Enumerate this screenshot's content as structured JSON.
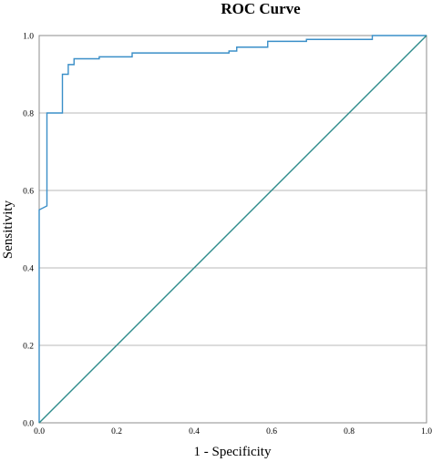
{
  "chart_data": {
    "type": "line",
    "title": "ROC Curve",
    "xlabel": "1 - Specificity",
    "ylabel": "Sensitivity",
    "xlim": [
      0.0,
      1.0
    ],
    "ylim": [
      0.0,
      1.0
    ],
    "x_ticks": [
      "0.0",
      "0.2",
      "0.4",
      "0.6",
      "0.8",
      "1.0"
    ],
    "y_ticks": [
      "0.0",
      "0.2",
      "0.4",
      "0.6",
      "0.8",
      "1.0"
    ],
    "x_tick_values": [
      0,
      0.2,
      0.4,
      0.6,
      0.8,
      1.0
    ],
    "y_tick_values": [
      0,
      0.2,
      0.4,
      0.6,
      0.8,
      1.0
    ],
    "grid": "horizontal",
    "series": [
      {
        "color": "#3a8fc8",
        "points": [
          [
            0.0,
            0.0
          ],
          [
            0.0,
            0.55
          ],
          [
            0.02,
            0.56
          ],
          [
            0.02,
            0.8
          ],
          [
            0.06,
            0.8
          ],
          [
            0.06,
            0.9
          ],
          [
            0.075,
            0.9
          ],
          [
            0.075,
            0.925
          ],
          [
            0.09,
            0.925
          ],
          [
            0.09,
            0.94
          ],
          [
            0.155,
            0.94
          ],
          [
            0.155,
            0.945
          ],
          [
            0.24,
            0.945
          ],
          [
            0.24,
            0.955
          ],
          [
            0.49,
            0.955
          ],
          [
            0.49,
            0.96
          ],
          [
            0.51,
            0.96
          ],
          [
            0.51,
            0.97
          ],
          [
            0.59,
            0.97
          ],
          [
            0.59,
            0.985
          ],
          [
            0.69,
            0.985
          ],
          [
            0.69,
            0.99
          ],
          [
            0.86,
            0.99
          ],
          [
            0.86,
            1.0
          ],
          [
            1.0,
            1.0
          ]
        ]
      },
      {
        "color": "#2e8b8b",
        "points": [
          [
            0.0,
            0.0
          ],
          [
            1.0,
            1.0
          ]
        ]
      }
    ]
  }
}
